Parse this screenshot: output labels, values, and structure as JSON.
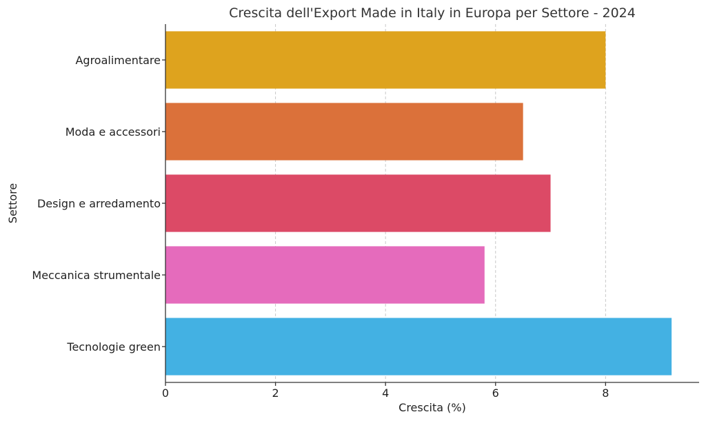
{
  "chart_data": {
    "type": "bar",
    "orientation": "horizontal",
    "title": "Crescita dell'Export Made in Italy in Europa per Settore - 2024",
    "xlabel": "Crescita (%)",
    "ylabel": "Settore",
    "categories": [
      "Agroalimentare",
      "Moda e accessori",
      "Design e arredamento",
      "Meccanica strumentale",
      "Tecnologie green"
    ],
    "values": [
      8.0,
      6.5,
      7.0,
      5.8,
      9.2
    ],
    "colors": [
      "#DEA31E",
      "#DB713A",
      "#DC4A66",
      "#E56BBC",
      "#43B1E3"
    ],
    "xlim": [
      0,
      9.7
    ],
    "xticks": [
      0,
      2,
      4,
      6,
      8
    ],
    "grid": "x-dashed",
    "legend": "none"
  }
}
